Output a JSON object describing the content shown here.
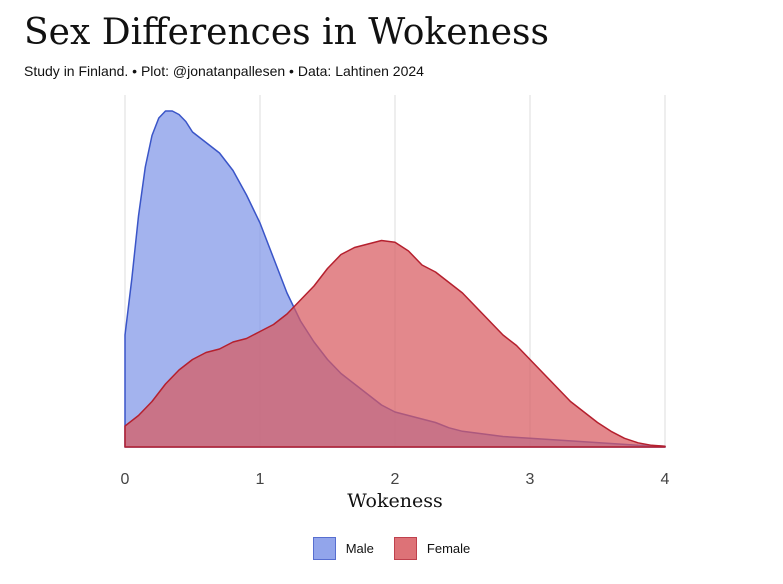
{
  "header": {
    "title": "Sex Differences in Wokeness",
    "subtitle": "Study in Finland. • Plot: @jonatanpallesen • Data: Lahtinen 2024"
  },
  "chart_data": {
    "type": "area",
    "xlabel": "Wokeness",
    "ylabel": "",
    "xlim": [
      0,
      4
    ],
    "ylim": [
      0,
      1.0
    ],
    "xticks": [
      0,
      1,
      2,
      3,
      4
    ],
    "grid": "vertical",
    "legend_position": "bottom",
    "series": [
      {
        "name": "Male",
        "fill": "#8096E8",
        "stroke": "#3A55C8",
        "x": [
          0,
          0.05,
          0.1,
          0.15,
          0.2,
          0.25,
          0.3,
          0.35,
          0.4,
          0.45,
          0.5,
          0.6,
          0.7,
          0.8,
          0.9,
          1.0,
          1.1,
          1.2,
          1.3,
          1.4,
          1.5,
          1.6,
          1.7,
          1.8,
          1.9,
          2.0,
          2.1,
          2.2,
          2.3,
          2.4,
          2.5,
          2.6,
          2.7,
          2.8,
          3.0,
          3.2,
          3.4,
          3.6,
          3.8,
          4.0
        ],
        "y": [
          0.32,
          0.48,
          0.66,
          0.8,
          0.89,
          0.94,
          0.96,
          0.96,
          0.95,
          0.93,
          0.9,
          0.87,
          0.84,
          0.79,
          0.72,
          0.64,
          0.54,
          0.44,
          0.36,
          0.3,
          0.25,
          0.21,
          0.18,
          0.15,
          0.12,
          0.1,
          0.09,
          0.08,
          0.07,
          0.055,
          0.045,
          0.04,
          0.035,
          0.03,
          0.025,
          0.02,
          0.015,
          0.01,
          0.005,
          0.002
        ]
      },
      {
        "name": "Female",
        "fill": "#D85A60",
        "stroke": "#B5202E",
        "x": [
          0,
          0.1,
          0.2,
          0.3,
          0.4,
          0.5,
          0.6,
          0.7,
          0.8,
          0.9,
          1.0,
          1.1,
          1.2,
          1.3,
          1.4,
          1.5,
          1.6,
          1.7,
          1.8,
          1.9,
          2.0,
          2.1,
          2.2,
          2.3,
          2.4,
          2.5,
          2.6,
          2.7,
          2.8,
          2.9,
          3.0,
          3.1,
          3.2,
          3.3,
          3.4,
          3.5,
          3.6,
          3.7,
          3.8,
          3.9,
          4.0
        ],
        "y": [
          0.06,
          0.09,
          0.13,
          0.18,
          0.22,
          0.25,
          0.27,
          0.28,
          0.3,
          0.31,
          0.33,
          0.35,
          0.38,
          0.42,
          0.46,
          0.51,
          0.55,
          0.57,
          0.58,
          0.59,
          0.585,
          0.56,
          0.52,
          0.5,
          0.47,
          0.44,
          0.4,
          0.36,
          0.32,
          0.29,
          0.25,
          0.21,
          0.17,
          0.13,
          0.1,
          0.07,
          0.045,
          0.025,
          0.012,
          0.005,
          0.002
        ]
      }
    ]
  }
}
